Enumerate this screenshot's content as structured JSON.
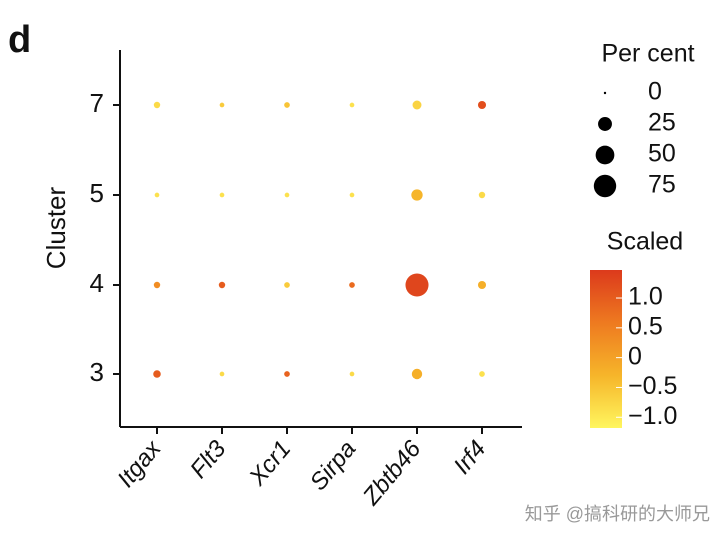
{
  "chart_data": {
    "type": "dot",
    "panel_label": "d",
    "ylabel": "Cluster",
    "categories": [
      "Itgax",
      "Flt3",
      "Xcr1",
      "Sirpa",
      "Zbtb46",
      "Irf4"
    ],
    "rows": [
      {
        "label": "7",
        "percent": [
          3,
          1,
          2,
          1,
          8,
          6
        ],
        "scaled": [
          -0.8,
          -0.6,
          -0.5,
          -0.9,
          -0.7,
          1.2
        ]
      },
      {
        "label": "5",
        "percent": [
          1,
          1,
          1,
          1,
          15,
          3
        ],
        "scaled": [
          -0.9,
          -0.9,
          -0.9,
          -0.9,
          -0.3,
          -0.8
        ]
      },
      {
        "label": "4",
        "percent": [
          3,
          3,
          2,
          2,
          80,
          6
        ],
        "scaled": [
          0.3,
          1.0,
          -0.6,
          0.8,
          1.3,
          -0.2
        ]
      },
      {
        "label": "3",
        "percent": [
          5,
          1,
          2,
          1,
          12,
          2
        ],
        "scaled": [
          1.0,
          -0.8,
          0.9,
          -0.8,
          -0.2,
          -0.9
        ]
      }
    ],
    "size_legend": {
      "title": "Per cent",
      "values": [
        0,
        25,
        50,
        75
      ]
    },
    "color_legend": {
      "title": "Scaled",
      "clim": [
        -1.18,
        1.47
      ],
      "ticks": [
        {
          "value": 1,
          "label": "1.0"
        },
        0.5,
        0,
        {
          "value": -0.5,
          "label": "−0.5"
        },
        {
          "value": -1,
          "label": "−1.0"
        }
      ],
      "colorscale": [
        "#fff65e",
        "#f6b52a",
        "#ee7a20",
        "#dc3a1c"
      ]
    },
    "watermark": "知乎 @搞科研的大师兄"
  }
}
